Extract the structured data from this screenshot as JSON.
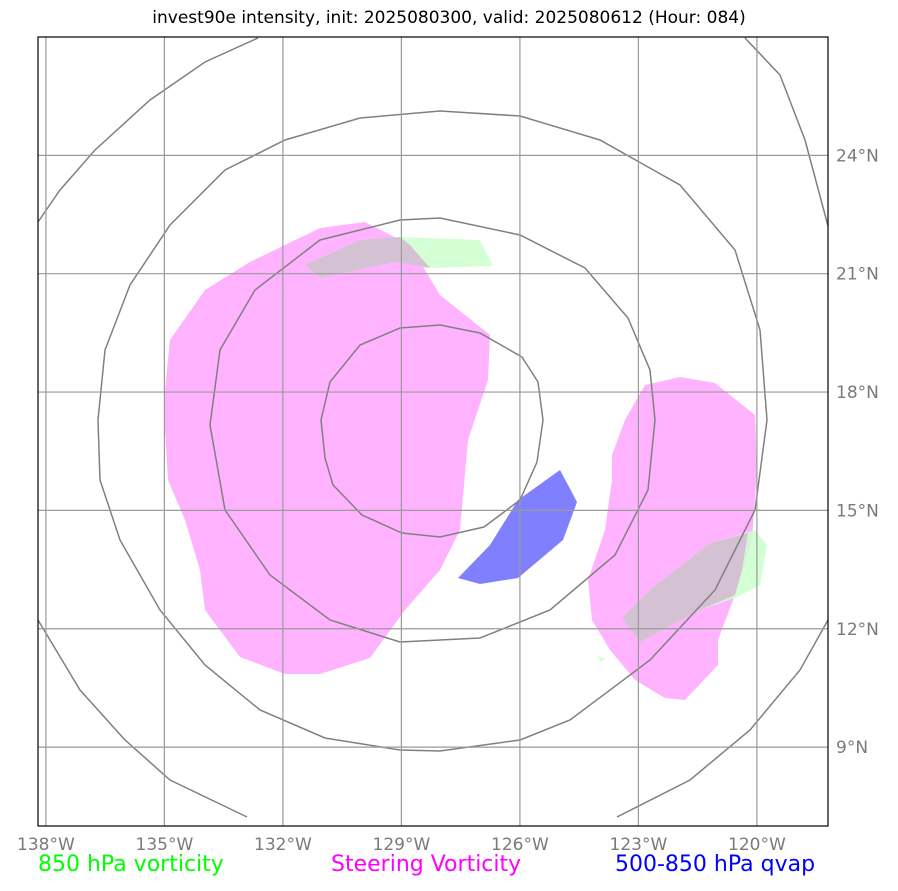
{
  "title": "invest90e intensity, init: 2025080300, valid: 2025080612 (Hour: 084)",
  "map": {
    "lon_range": [
      -138.2,
      -118.2
    ],
    "lat_range": [
      7,
      27
    ],
    "lon_ticks": [
      {
        "value": -138,
        "label": "138°W"
      },
      {
        "value": -135,
        "label": "135°W"
      },
      {
        "value": -132,
        "label": "132°W"
      },
      {
        "value": -129,
        "label": "129°W"
      },
      {
        "value": -126,
        "label": "126°W"
      },
      {
        "value": -123,
        "label": "123°W"
      },
      {
        "value": -120,
        "label": "120°W"
      }
    ],
    "lat_ticks": [
      {
        "value": 9,
        "label": "9°N"
      },
      {
        "value": 12,
        "label": "12°N"
      },
      {
        "value": 15,
        "label": "15°N"
      },
      {
        "value": 18,
        "label": "18°N"
      },
      {
        "value": 21,
        "label": "21°N"
      },
      {
        "value": 24,
        "label": "24°N"
      }
    ],
    "grid": true,
    "colors": {
      "vorticity_850": "#ccffcc",
      "steering_vorticity": "#ffb3ff",
      "qvap": "#8080ff",
      "rings": "#808080",
      "grid": "#9a9a9a"
    }
  },
  "legend": {
    "vorticity_850": {
      "label": "850 hPa vorticity",
      "color": "#00ff00"
    },
    "steering_vorticity": {
      "label": "Steering Vorticity",
      "color": "#ff00ff"
    },
    "qvap": {
      "label": "500-850 hPa qvap",
      "color": "#0000ff"
    }
  }
}
